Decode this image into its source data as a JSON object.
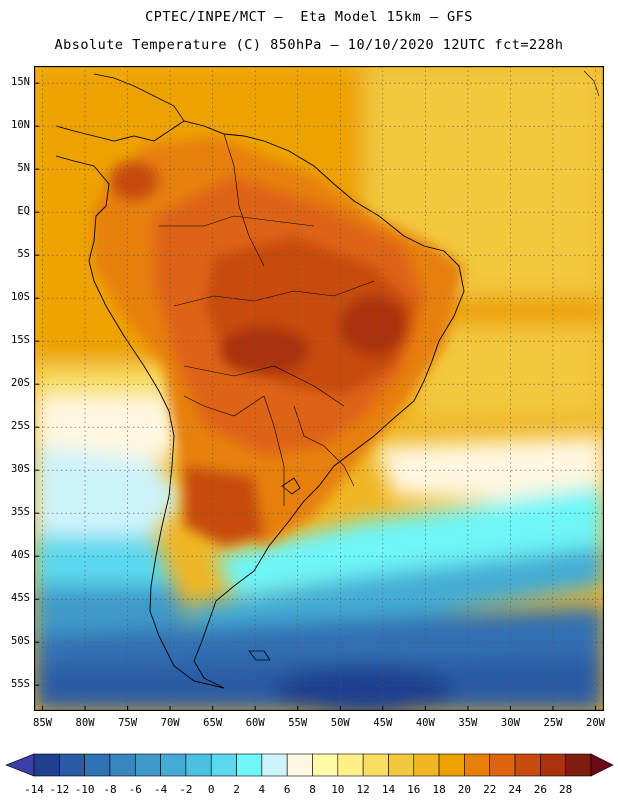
{
  "header": {
    "line1": "CPTEC/INPE/MCT —  Eta Model 15km — GFS",
    "line2": "Absolute Temperature (C) 850hPa — 10/10/2020 12UTC fct=228h"
  },
  "map": {
    "lat_labels": [
      "15N",
      "10N",
      "5N",
      "EQ",
      "5S",
      "10S",
      "15S",
      "20S",
      "25S",
      "30S",
      "35S",
      "40S",
      "45S",
      "50S",
      "55S"
    ],
    "lon_labels": [
      "85W",
      "80W",
      "75W",
      "70W",
      "65W",
      "60W",
      "55W",
      "50W",
      "45W",
      "40W",
      "35W",
      "30W",
      "25W",
      "20W"
    ],
    "lat_range": [
      17,
      -58
    ],
    "lon_range": [
      -86,
      -19
    ]
  },
  "colorbar": {
    "labels": [
      "-14",
      "-12",
      "-10",
      "-8",
      "-6",
      "-4",
      "-2",
      "0",
      "2",
      "4",
      "6",
      "8",
      "10",
      "12",
      "14",
      "16",
      "18",
      "20",
      "22",
      "24",
      "26",
      "28"
    ],
    "colors": [
      "#1f3f8f",
      "#2a5ba6",
      "#3070b4",
      "#3a86bf",
      "#3f9ac9",
      "#44acd4",
      "#4cc0e0",
      "#5ad8ee",
      "#6ef6f8",
      "#cdf3fb",
      "#fff7e0",
      "#fffaa8",
      "#fff08a",
      "#f8de5e",
      "#f2c83e",
      "#f0b624",
      "#eea200",
      "#e77f08",
      "#df6412",
      "#c84b10",
      "#aa330e",
      "#7e1d10"
    ],
    "under_color": "#3a3fa8",
    "over_color": "#6b0a18"
  }
}
